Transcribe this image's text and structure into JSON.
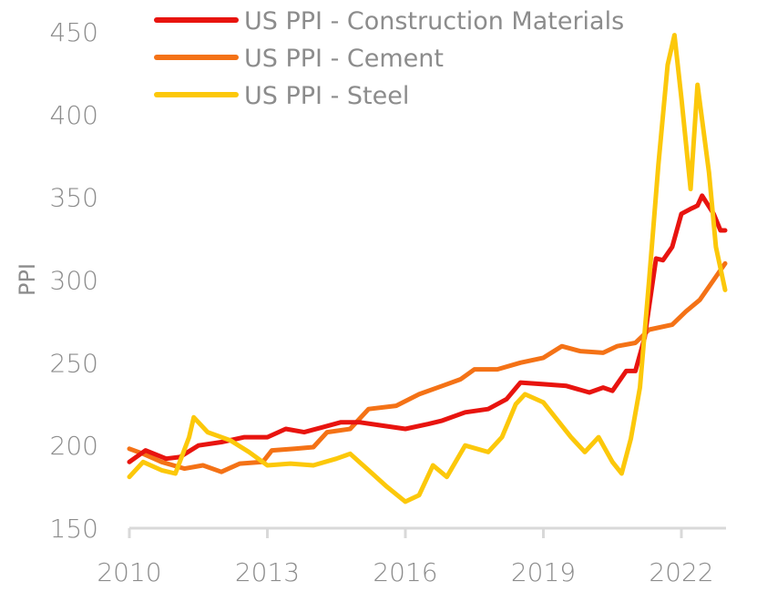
{
  "chart_data": {
    "type": "line",
    "title": "",
    "xlabel": "",
    "ylabel": "PPI",
    "xlim": [
      2010,
      2022.95
    ],
    "ylim": [
      150,
      450
    ],
    "x_ticks": [
      2010,
      2013,
      2016,
      2019,
      2022
    ],
    "x_tick_labels": [
      "2010",
      "2013",
      "2016",
      "2019",
      "2022"
    ],
    "y_ticks": [
      150,
      200,
      250,
      300,
      350,
      400,
      450
    ],
    "y_tick_labels": [
      "150",
      "200",
      "250",
      "300",
      "350",
      "400",
      "450"
    ],
    "grid": false,
    "legend_position": "top-center",
    "series": [
      {
        "name": "US PPI - Construction Materials",
        "color": "#e8140f",
        "x": [
          2010,
          2010.35,
          2010.8,
          2011.1,
          2011.5,
          2012,
          2012.5,
          2013,
          2013.4,
          2013.8,
          2014.2,
          2014.6,
          2015,
          2015.5,
          2016,
          2016.5,
          2016.8,
          2017.3,
          2017.8,
          2018.2,
          2018.5,
          2019,
          2019.5,
          2020,
          2020.3,
          2020.5,
          2020.8,
          2021,
          2021.2,
          2021.45,
          2021.6,
          2021.8,
          2022,
          2022.2,
          2022.35,
          2022.45,
          2022.7,
          2022.85,
          2022.95
        ],
        "values": [
          190,
          197,
          192,
          193,
          200,
          202,
          205,
          205,
          210,
          208,
          211,
          214,
          214,
          212,
          210,
          213,
          215,
          220,
          222,
          228,
          238,
          237,
          236,
          232,
          235,
          233,
          245,
          245,
          265,
          313,
          312,
          320,
          340,
          343,
          345,
          351,
          340,
          330,
          330
        ]
      },
      {
        "name": "US PPI - Cement",
        "color": "#f47216",
        "x": [
          2010,
          2010.3,
          2010.7,
          2011.2,
          2011.6,
          2012,
          2012.4,
          2012.9,
          2013.1,
          2013.6,
          2014,
          2014.3,
          2014.8,
          2015.2,
          2015.8,
          2016.3,
          2016.8,
          2017.2,
          2017.5,
          2018,
          2018.5,
          2019,
          2019.4,
          2019.8,
          2020.3,
          2020.6,
          2021,
          2021.3,
          2021.8,
          2022.1,
          2022.4,
          2022.7,
          2022.95
        ],
        "values": [
          198,
          195,
          190,
          186,
          188,
          184,
          189,
          190,
          197,
          198,
          199,
          208,
          210,
          222,
          224,
          231,
          236,
          240,
          246,
          246,
          250,
          253,
          260,
          257,
          256,
          260,
          262,
          270,
          273,
          281,
          288,
          300,
          310
        ]
      },
      {
        "name": "US PPI - Steel",
        "color": "#fcc80a",
        "x": [
          2010,
          2010.3,
          2010.7,
          2011,
          2011.3,
          2011.4,
          2011.7,
          2012.2,
          2012.6,
          2013,
          2013.5,
          2014,
          2014.5,
          2014.8,
          2015.2,
          2015.6,
          2016,
          2016.3,
          2016.6,
          2016.9,
          2017.3,
          2017.8,
          2018.1,
          2018.4,
          2018.6,
          2019,
          2019.6,
          2019.9,
          2020.2,
          2020.5,
          2020.7,
          2020.9,
          2021.1,
          2021.3,
          2021.5,
          2021.7,
          2021.85,
          2022,
          2022.2,
          2022.35,
          2022.6,
          2022.75,
          2022.95
        ],
        "values": [
          181,
          190,
          185,
          183,
          205,
          217,
          208,
          203,
          196,
          188,
          189,
          188,
          192,
          195,
          185,
          175,
          166,
          170,
          188,
          181,
          200,
          196,
          205,
          225,
          231,
          226,
          205,
          196,
          205,
          190,
          183,
          204,
          235,
          300,
          370,
          430,
          448,
          410,
          355,
          418,
          365,
          320,
          294
        ]
      }
    ]
  }
}
